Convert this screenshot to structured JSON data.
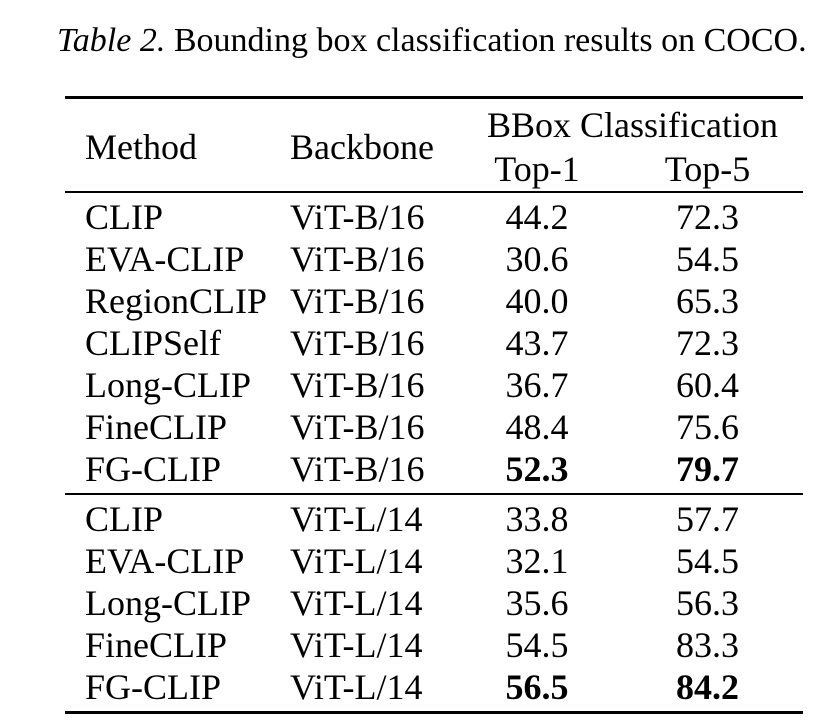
{
  "caption": {
    "label": "Table 2.",
    "text": "Bounding box classification results on COCO."
  },
  "table": {
    "columns": {
      "method": "Method",
      "backbone": "Backbone",
      "group": "BBox Classification",
      "top1": "Top-1",
      "top5": "Top-5"
    },
    "sections": [
      {
        "name": "ViT-B/16",
        "rows": [
          {
            "method": "CLIP",
            "backbone": "ViT-B/16",
            "top1": "44.2",
            "top5": "72.3",
            "bold": false
          },
          {
            "method": "EVA-CLIP",
            "backbone": "ViT-B/16",
            "top1": "30.6",
            "top5": "54.5",
            "bold": false
          },
          {
            "method": "RegionCLIP",
            "backbone": "ViT-B/16",
            "top1": "40.0",
            "top5": "65.3",
            "bold": false
          },
          {
            "method": "CLIPSelf",
            "backbone": "ViT-B/16",
            "top1": "43.7",
            "top5": "72.3",
            "bold": false
          },
          {
            "method": "Long-CLIP",
            "backbone": "ViT-B/16",
            "top1": "36.7",
            "top5": "60.4",
            "bold": false
          },
          {
            "method": "FineCLIP",
            "backbone": "ViT-B/16",
            "top1": "48.4",
            "top5": "75.6",
            "bold": false
          },
          {
            "method": "FG-CLIP",
            "backbone": "ViT-B/16",
            "top1": "52.3",
            "top5": "79.7",
            "bold": true
          }
        ]
      },
      {
        "name": "ViT-L/14",
        "rows": [
          {
            "method": "CLIP",
            "backbone": "ViT-L/14",
            "top1": "33.8",
            "top5": "57.7",
            "bold": false
          },
          {
            "method": "EVA-CLIP",
            "backbone": "ViT-L/14",
            "top1": "32.1",
            "top5": "54.5",
            "bold": false
          },
          {
            "method": "Long-CLIP",
            "backbone": "ViT-L/14",
            "top1": "35.6",
            "top5": "56.3",
            "bold": false
          },
          {
            "method": "FineCLIP",
            "backbone": "ViT-L/14",
            "top1": "54.5",
            "top5": "83.3",
            "bold": false
          },
          {
            "method": "FG-CLIP",
            "backbone": "ViT-L/14",
            "top1": "56.5",
            "top5": "84.2",
            "bold": true
          }
        ]
      }
    ]
  }
}
